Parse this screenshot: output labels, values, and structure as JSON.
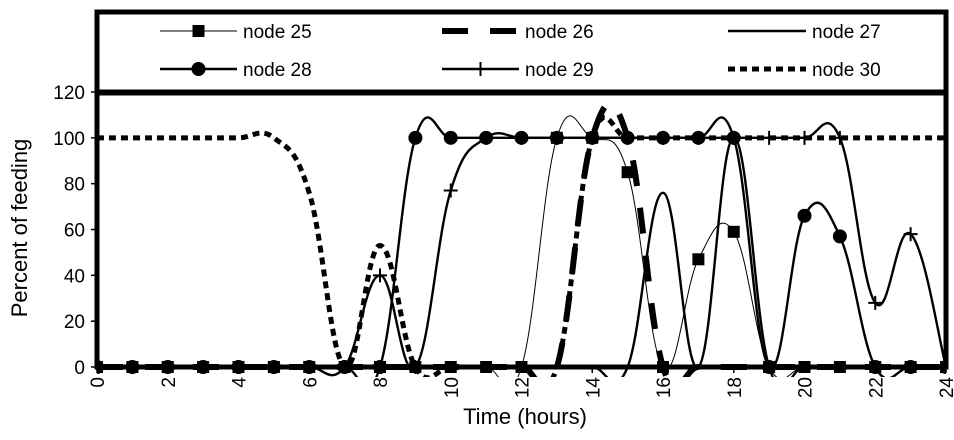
{
  "chart_data": {
    "type": "line",
    "xlabel": "Time  (hours)",
    "ylabel": "Percent of feeding",
    "xlim": [
      0,
      24
    ],
    "ylim": [
      0,
      120
    ],
    "x_ticks": [
      "0",
      "2",
      "4",
      "6",
      "8",
      "10",
      "12",
      "14",
      "16",
      "18",
      "20",
      "22",
      "24"
    ],
    "y_ticks": [
      "0",
      "20",
      "40",
      "60",
      "80",
      "100",
      "120"
    ],
    "grid": false,
    "legend_position": "top",
    "x": [
      0,
      1,
      2,
      3,
      4,
      5,
      6,
      7,
      8,
      9,
      10,
      11,
      12,
      13,
      14,
      15,
      16,
      17,
      18,
      19,
      20,
      21,
      22,
      23,
      24
    ],
    "series": [
      {
        "name": "node 25",
        "marker": "square",
        "line": "thin",
        "values": [
          0,
          0,
          0,
          0,
          0,
          0,
          0,
          0,
          0,
          0,
          0,
          0,
          0,
          100,
          100,
          85,
          0,
          47,
          59,
          0,
          0,
          0,
          0,
          0,
          0
        ]
      },
      {
        "name": "node 26",
        "marker": "none",
        "line": "thick-dash",
        "values": [
          0,
          0,
          0,
          0,
          0,
          0,
          0,
          0,
          0,
          0,
          0,
          0,
          0,
          0,
          100,
          100,
          0,
          0,
          0,
          0,
          0,
          0,
          0,
          0,
          0
        ]
      },
      {
        "name": "node 27",
        "marker": "none",
        "line": "solid",
        "values": [
          0,
          0,
          0,
          0,
          0,
          0,
          0,
          0,
          0,
          0,
          0,
          0,
          0,
          0,
          0,
          0,
          76,
          0,
          100,
          0,
          0,
          0,
          0,
          0,
          0
        ]
      },
      {
        "name": "node 28",
        "marker": "circle",
        "line": "solid",
        "values": [
          0,
          0,
          0,
          0,
          0,
          0,
          0,
          0,
          0,
          100,
          100,
          100,
          100,
          100,
          100,
          100,
          100,
          100,
          100,
          0,
          66,
          57,
          0,
          0,
          0
        ]
      },
      {
        "name": "node 29",
        "marker": "plus",
        "line": "solid",
        "values": [
          0,
          0,
          0,
          0,
          0,
          0,
          0,
          0,
          40,
          0,
          77,
          100,
          100,
          100,
          100,
          100,
          100,
          100,
          100,
          100,
          100,
          100,
          28,
          58,
          0
        ]
      },
      {
        "name": "node 30",
        "marker": "none",
        "line": "dotted-thick",
        "values": [
          100,
          100,
          100,
          100,
          100,
          100,
          76,
          0,
          53,
          0,
          0,
          0,
          0,
          0,
          100,
          100,
          100,
          100,
          100,
          100,
          100,
          100,
          100,
          100,
          100
        ]
      }
    ],
    "colors": {
      "line": "#000000",
      "background": "#ffffff"
    }
  }
}
